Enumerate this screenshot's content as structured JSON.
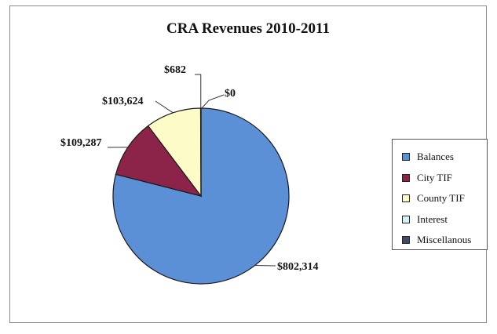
{
  "chart_data": {
    "type": "pie",
    "title": "CRA Revenues 2010-2011",
    "slices": [
      {
        "name": "Balances",
        "value": 802314,
        "label": "$802,314",
        "color": "#5b8fd6"
      },
      {
        "name": "City TIF",
        "value": 109287,
        "label": "$109,287",
        "color": "#8c2348"
      },
      {
        "name": "County TIF",
        "value": 103624,
        "label": "$103,624",
        "color": "#fdfcc8"
      },
      {
        "name": "Interest",
        "value": 682,
        "label": "$682",
        "color": "#d6f0f4"
      },
      {
        "name": "Miscellanous",
        "value": 0,
        "label": "$0",
        "color": "#404c63"
      }
    ],
    "legend_position": "right"
  }
}
